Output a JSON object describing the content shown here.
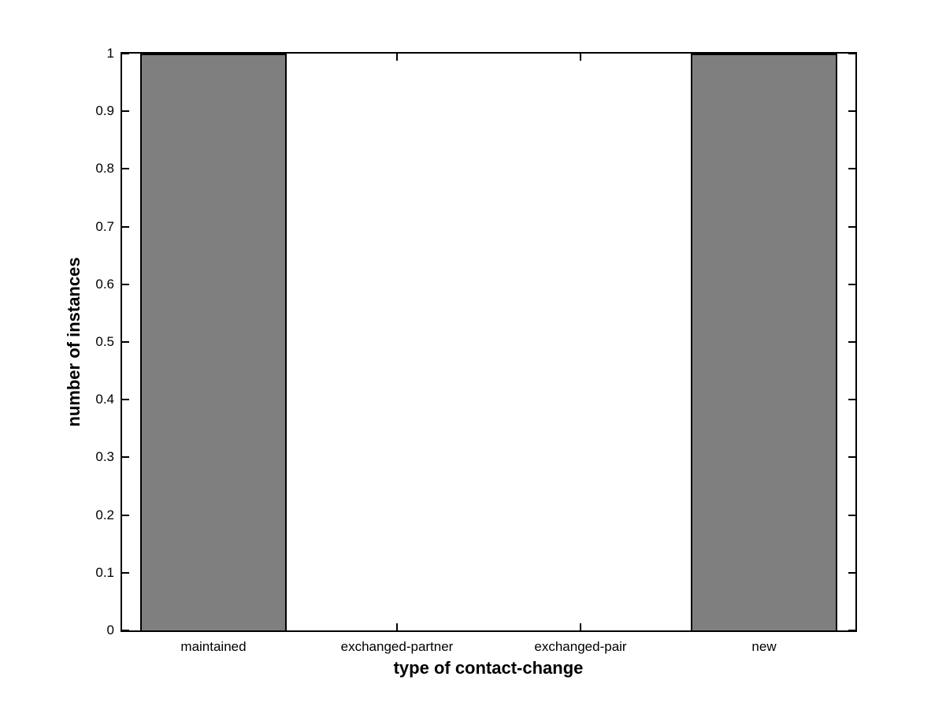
{
  "chart_data": {
    "type": "bar",
    "title": "",
    "categories": [
      "maintained",
      "exchanged-partner",
      "exchanged-pair",
      "new"
    ],
    "values": [
      1,
      0,
      0,
      1
    ],
    "xlabel": "type of contact-change",
    "ylabel": "number of instances",
    "ylim": [
      0,
      1
    ],
    "ytick_step": 0.1,
    "ytick_labels": [
      "0",
      "0.1",
      "0.2",
      "0.3",
      "0.4",
      "0.5",
      "0.6",
      "0.7",
      "0.8",
      "0.9",
      "1"
    ],
    "bar_width_fraction": 0.8,
    "bar_fill_color": "#7f7f7f",
    "bar_edge_color": "#000000",
    "axis_color": "#000000",
    "background_color": "#ffffff",
    "grid": false,
    "legend": null,
    "box": true,
    "tick_direction": "in"
  }
}
